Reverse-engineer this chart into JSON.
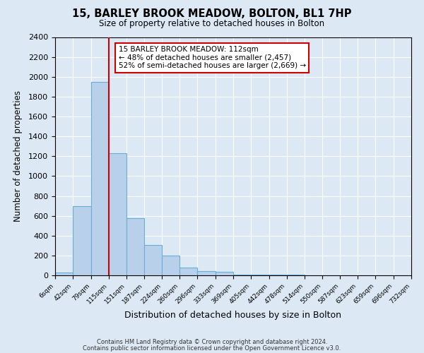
{
  "title": "15, BARLEY BROOK MEADOW, BOLTON, BL1 7HP",
  "subtitle": "Size of property relative to detached houses in Bolton",
  "xlabel": "Distribution of detached houses by size in Bolton",
  "ylabel": "Number of detached properties",
  "bin_edges": [
    6,
    42,
    79,
    115,
    151,
    187,
    224,
    260,
    296,
    333,
    369,
    405,
    442,
    478,
    514,
    550,
    587,
    623,
    659,
    696,
    732
  ],
  "bin_counts": [
    25,
    700,
    1950,
    1230,
    575,
    305,
    200,
    80,
    45,
    35,
    5,
    5,
    5,
    5,
    0,
    0,
    0,
    0,
    0,
    0
  ],
  "red_line_x": 115,
  "annotation_title": "15 BARLEY BROOK MEADOW: 112sqm",
  "annotation_line1": "← 48% of detached houses are smaller (2,457)",
  "annotation_line2": "52% of semi-detached houses are larger (2,669) →",
  "ylim": [
    0,
    2400
  ],
  "yticks": [
    0,
    200,
    400,
    600,
    800,
    1000,
    1200,
    1400,
    1600,
    1800,
    2000,
    2200,
    2400
  ],
  "bar_color": "#b8d0ea",
  "bar_edge_color": "#6aaed6",
  "background_color": "#dce9f5",
  "red_line_color": "#cc0000",
  "annotation_box_edge": "#cc0000",
  "footer1": "Contains HM Land Registry data © Crown copyright and database right 2024.",
  "footer2": "Contains public sector information licensed under the Open Government Licence v3.0."
}
